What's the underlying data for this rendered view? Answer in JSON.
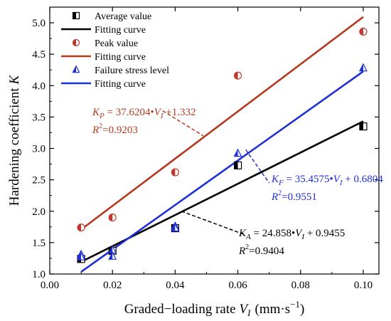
{
  "chart_data": {
    "type": "scatter",
    "xlabel": "Graded−loading rate",
    "xlabel_var": "V",
    "xlabel_sub": "I",
    "xlabel_unit_a": "(mm·s",
    "xlabel_unit_sup": "−1",
    "xlabel_unit_b": ")",
    "ylabel": "Hardening coefficient",
    "ylabel_var": "K",
    "xlim": [
      0.0,
      0.105
    ],
    "ylim": [
      1.0,
      5.25
    ],
    "x_ticks": [
      {
        "value": 0.0,
        "label": "0.00"
      },
      {
        "value": 0.02,
        "label": "0.02"
      },
      {
        "value": 0.04,
        "label": "0.04"
      },
      {
        "value": 0.06,
        "label": "0.06"
      },
      {
        "value": 0.08,
        "label": "0.08"
      },
      {
        "value": 0.1,
        "label": "0.10"
      }
    ],
    "y_ticks": [
      {
        "value": 1.0,
        "label": "1.0"
      },
      {
        "value": 1.5,
        "label": "1.5"
      },
      {
        "value": 2.0,
        "label": "2.0"
      },
      {
        "value": 2.5,
        "label": "2.5"
      },
      {
        "value": 3.0,
        "label": "3.0"
      },
      {
        "value": 3.5,
        "label": "3.5"
      },
      {
        "value": 4.0,
        "label": "4.0"
      },
      {
        "value": 4.5,
        "label": "4.5"
      },
      {
        "value": 5.0,
        "label": "5.0"
      }
    ],
    "grid": false,
    "legend_position": "top-left",
    "series": [
      {
        "key": "average",
        "name": "Average value",
        "marker": "half-square",
        "color": "#000000",
        "x": [
          0.01,
          0.02,
          0.04,
          0.06,
          0.1
        ],
        "y": [
          1.24,
          1.37,
          1.73,
          2.73,
          3.35
        ]
      },
      {
        "key": "peak",
        "name": "Peak value",
        "marker": "half-circle",
        "color": "#c0392b",
        "x": [
          0.01,
          0.02,
          0.04,
          0.06,
          0.1
        ],
        "y": [
          1.74,
          1.9,
          2.62,
          4.16,
          4.86
        ]
      },
      {
        "key": "failure",
        "name": "Failure stress level",
        "marker": "half-triangle",
        "color": "#1f2fd6",
        "x": [
          0.01,
          0.01,
          0.02,
          0.02,
          0.04,
          0.04,
          0.06,
          0.1
        ],
        "y": [
          1.31,
          1.27,
          1.38,
          1.28,
          1.76,
          1.73,
          2.92,
          4.28
        ]
      }
    ],
    "fits": [
      {
        "key": "fit-average",
        "name": "Fitting curve",
        "color": "#000000",
        "slope": 24.858,
        "intercept": 0.9455,
        "x_range": [
          0.01,
          0.1
        ]
      },
      {
        "key": "fit-peak",
        "name": "Fitting curve",
        "color": "#b5391f",
        "slope": 37.6204,
        "intercept": 1.332,
        "x_range": [
          0.01,
          0.1
        ]
      },
      {
        "key": "fit-failure",
        "name": "Fitting curve",
        "color": "#1f2fd6",
        "slope": 35.4575,
        "intercept": 0.6804,
        "x_range": [
          0.01,
          0.1
        ]
      }
    ],
    "legend_order": [
      "average",
      "fit-average",
      "peak",
      "fit-peak",
      "failure",
      "fit-failure"
    ],
    "annotations": [
      {
        "key": "peak",
        "color": "#b5391f",
        "var": "K",
        "sub": "P",
        "rhs": " = 37.6204•",
        "rhs_var": "V",
        "rhs_sub": "I",
        "rhs_tail": " +1.332",
        "r2": "R",
        "r2_sup": "2",
        "r2_val": "=0.9203",
        "line_from": [
          0.036,
          3.6
        ],
        "line_to": [
          0.049,
          3.2
        ]
      },
      {
        "key": "failure",
        "color": "#1f2fd6",
        "var": "K",
        "sub": "F",
        "rhs": " = 35.4575•",
        "rhs_var": "V",
        "rhs_sub": "I",
        "rhs_tail": " + 0.6804",
        "r2": "R",
        "r2_sup": "2",
        "r2_val": "=0.9551",
        "line_from": [
          0.0625,
          2.98
        ],
        "line_to": [
          0.07,
          2.45
        ]
      },
      {
        "key": "average",
        "color": "#000000",
        "var": "K",
        "sub": "A",
        "rhs": " = 24.858•",
        "rhs_var": "V",
        "rhs_sub": "I",
        "rhs_tail": " + 0.9455",
        "r2": "R",
        "r2_sup": "2",
        "r2_val": "=0.9404",
        "line_from": [
          0.042,
          2.0
        ],
        "line_to": [
          0.062,
          1.63
        ]
      }
    ]
  }
}
